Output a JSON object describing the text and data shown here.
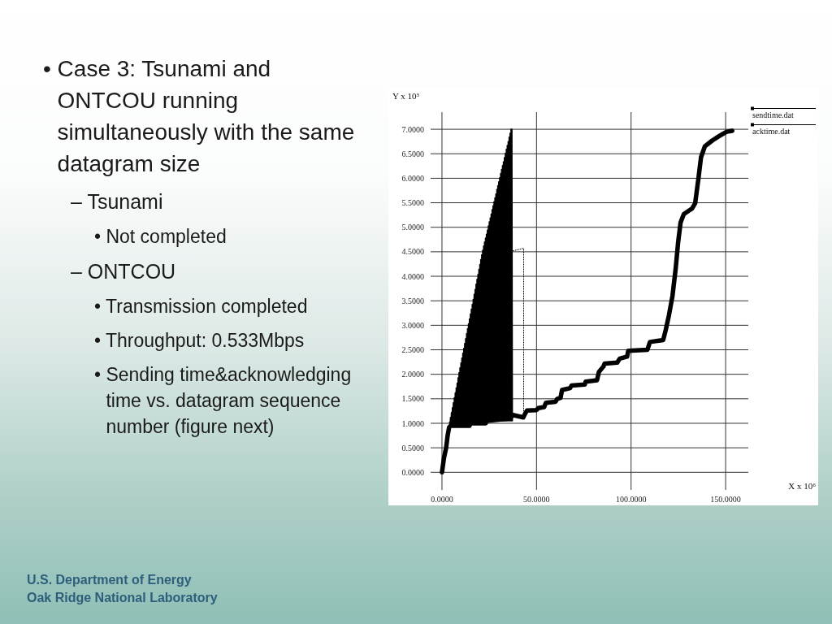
{
  "chart_data": {
    "type": "line",
    "xlabel": "X x 10⁶",
    "ylabel": "Y x 10³",
    "xlim": [
      -6,
      162
    ],
    "ylim": [
      -0.36,
      7.35
    ],
    "xticks": [
      {
        "value": 0,
        "label": "0.0000"
      },
      {
        "value": 50,
        "label": "50.0000"
      },
      {
        "value": 100,
        "label": "100.0000"
      },
      {
        "value": 150,
        "label": "150.0000"
      }
    ],
    "yticks": [
      {
        "value": 0,
        "label": "0.0000"
      },
      {
        "value": 0.5,
        "label": "0.5000"
      },
      {
        "value": 1,
        "label": "1.0000"
      },
      {
        "value": 1.5,
        "label": "1.5000"
      },
      {
        "value": 2,
        "label": "2.0000"
      },
      {
        "value": 2.5,
        "label": "2.5000"
      },
      {
        "value": 3,
        "label": "3.0000"
      },
      {
        "value": 3.5,
        "label": "3.5000"
      },
      {
        "value": 4,
        "label": "4.0000"
      },
      {
        "value": 4.5,
        "label": "4.5000"
      },
      {
        "value": 5,
        "label": "5.0000"
      },
      {
        "value": 5.5,
        "label": "5.5000"
      },
      {
        "value": 6,
        "label": "6.0000"
      },
      {
        "value": 6.5,
        "label": "6.5000"
      },
      {
        "value": 7,
        "label": "7.0000"
      }
    ],
    "grid": true,
    "legend": "top right",
    "series": [
      {
        "name": "sendtime.dat",
        "color": "#000000",
        "x": [
          4,
          4.25,
          4.5,
          4.75,
          5,
          5.25,
          5.5,
          5.75,
          6,
          6.25,
          6.5,
          6.75,
          7,
          7.25,
          7.5,
          7.75,
          8,
          8.25,
          8.5,
          8.75,
          9,
          9.25,
          9.5,
          9.75,
          10,
          10.25,
          10.5,
          10.75,
          11,
          11.25,
          11.5,
          11.75,
          12,
          12.25,
          12.5,
          12.75,
          13,
          13.25,
          13.5,
          13.75,
          14,
          14.25,
          14.5,
          14.75,
          15,
          15.25,
          15.5,
          15.75,
          16,
          16.25,
          16.5,
          16.75,
          17,
          17.25,
          17.5,
          17.75,
          18,
          18.25,
          18.5,
          18.75,
          19,
          19.25,
          19.5,
          19.75,
          20,
          20.25,
          20.5,
          20.75,
          21,
          21.25,
          21.5,
          21.75,
          22,
          22.25,
          22.5,
          22.75,
          23,
          23.25,
          23.5,
          23.75,
          24,
          24.25,
          24.5,
          24.75,
          25,
          25.25,
          25.5,
          25.75,
          26,
          26.25,
          26.5,
          26.75,
          27,
          27.25,
          27.5,
          27.75,
          28,
          28.25,
          28.5,
          28.75,
          29,
          29.25,
          29.5,
          29.75,
          30,
          30.25,
          30.5,
          30.75,
          31,
          31.25,
          31.5,
          31.75,
          32,
          32.25,
          32.5,
          32.75,
          33,
          33.25,
          33.5,
          33.75,
          34,
          34.25,
          34.5,
          34.75,
          35,
          35.25,
          35.5,
          35.75,
          36,
          36.25,
          36.5,
          36.75,
          37,
          37.25
        ],
        "values": [
          1.02,
          0.95,
          1.12,
          0.95,
          1.22,
          0.95,
          1.32,
          0.95,
          1.42,
          0.95,
          1.52,
          0.95,
          1.62,
          0.95,
          1.72,
          0.95,
          1.82,
          0.95,
          1.93,
          0.95,
          2.03,
          0.95,
          2.13,
          0.95,
          2.23,
          0.95,
          2.33,
          0.95,
          2.43,
          0.95,
          2.53,
          0.95,
          2.63,
          0.95,
          2.73,
          0.95,
          2.83,
          0.95,
          2.93,
          0.95,
          3.03,
          0.95,
          3.13,
          1.0,
          3.23,
          1.0,
          3.33,
          1.0,
          3.43,
          1.0,
          3.53,
          1.0,
          3.63,
          1.0,
          3.73,
          1.0,
          3.84,
          1.0,
          3.94,
          1.0,
          4.04,
          1.0,
          4.14,
          1.0,
          4.24,
          1.0,
          4.34,
          1.0,
          4.44,
          1.0,
          4.53,
          1.0,
          4.62,
          1.0,
          4.7,
          1.0,
          4.78,
          1.05,
          4.86,
          1.05,
          4.94,
          1.05,
          5.03,
          1.05,
          5.11,
          1.05,
          5.19,
          1.05,
          5.27,
          1.05,
          5.36,
          1.05,
          5.44,
          1.05,
          5.52,
          1.05,
          5.6,
          1.05,
          5.68,
          1.05,
          5.77,
          1.05,
          5.85,
          1.05,
          5.93,
          1.05,
          6.01,
          1.05,
          6.1,
          1.05,
          6.18,
          1.05,
          6.26,
          1.05,
          6.34,
          1.05,
          6.42,
          1.05,
          6.51,
          1.05,
          6.59,
          1.05,
          6.67,
          1.05,
          6.75,
          1.05,
          6.84,
          1.05,
          6.92,
          1.05,
          7.0,
          1.05,
          7.0,
          1.05
        ]
      },
      {
        "name": "acktime.dat",
        "color": "#000000",
        "x": [
          0,
          1.1,
          2.2,
          3,
          3.8,
          4.5,
          14.6,
          14.8,
          23.2,
          23.5,
          36,
          37.5,
          43,
          44,
          45,
          50,
          51,
          54,
          55,
          60,
          61,
          62.7,
          63.5,
          67.8,
          68.5,
          75.5,
          76,
          82,
          83,
          85.4,
          86,
          92.7,
          94,
          97.9,
          98.5,
          108.6,
          110,
          117,
          118.3,
          120,
          121.9,
          123.6,
          124.9,
          126.2,
          127.9,
          132.2,
          133.9,
          135.6,
          137,
          139,
          142.9,
          147,
          150.6,
          153.5
        ],
        "values": [
          0,
          0.3,
          0.5,
          0.75,
          0.92,
          0.95,
          0.95,
          1.0,
          1.0,
          1.05,
          1.1,
          1.17,
          1.12,
          1.2,
          1.26,
          1.27,
          1.31,
          1.33,
          1.42,
          1.44,
          1.5,
          1.52,
          1.68,
          1.72,
          1.77,
          1.79,
          1.85,
          1.88,
          2.05,
          2.16,
          2.22,
          2.24,
          2.32,
          2.36,
          2.48,
          2.5,
          2.66,
          2.7,
          2.9,
          3.2,
          3.6,
          4.16,
          4.7,
          5.1,
          5.27,
          5.38,
          5.49,
          5.99,
          6.43,
          6.65,
          6.77,
          6.87,
          6.95,
          6.97
        ]
      },
      {
        "color": "#000000",
        "line_style": "dotted",
        "x": [
          37.5,
          43.2,
          43.2
        ],
        "values": [
          4.52,
          4.57,
          1.25
        ]
      }
    ],
    "annotations": [
      "• Case 3: Tsunami and ONTCOU running simultaneously with the same datagram size",
      "– Tsunami",
      "• Not completed",
      "– ONTCOU",
      "• Transmission completed",
      "• Throughput: 0.533Mbps",
      "• Sending time&acknowledging time vs. datagram sequence number (figure next)",
      "U.S. Department of Energy",
      "Oak Ridge National Laboratory"
    ]
  }
}
